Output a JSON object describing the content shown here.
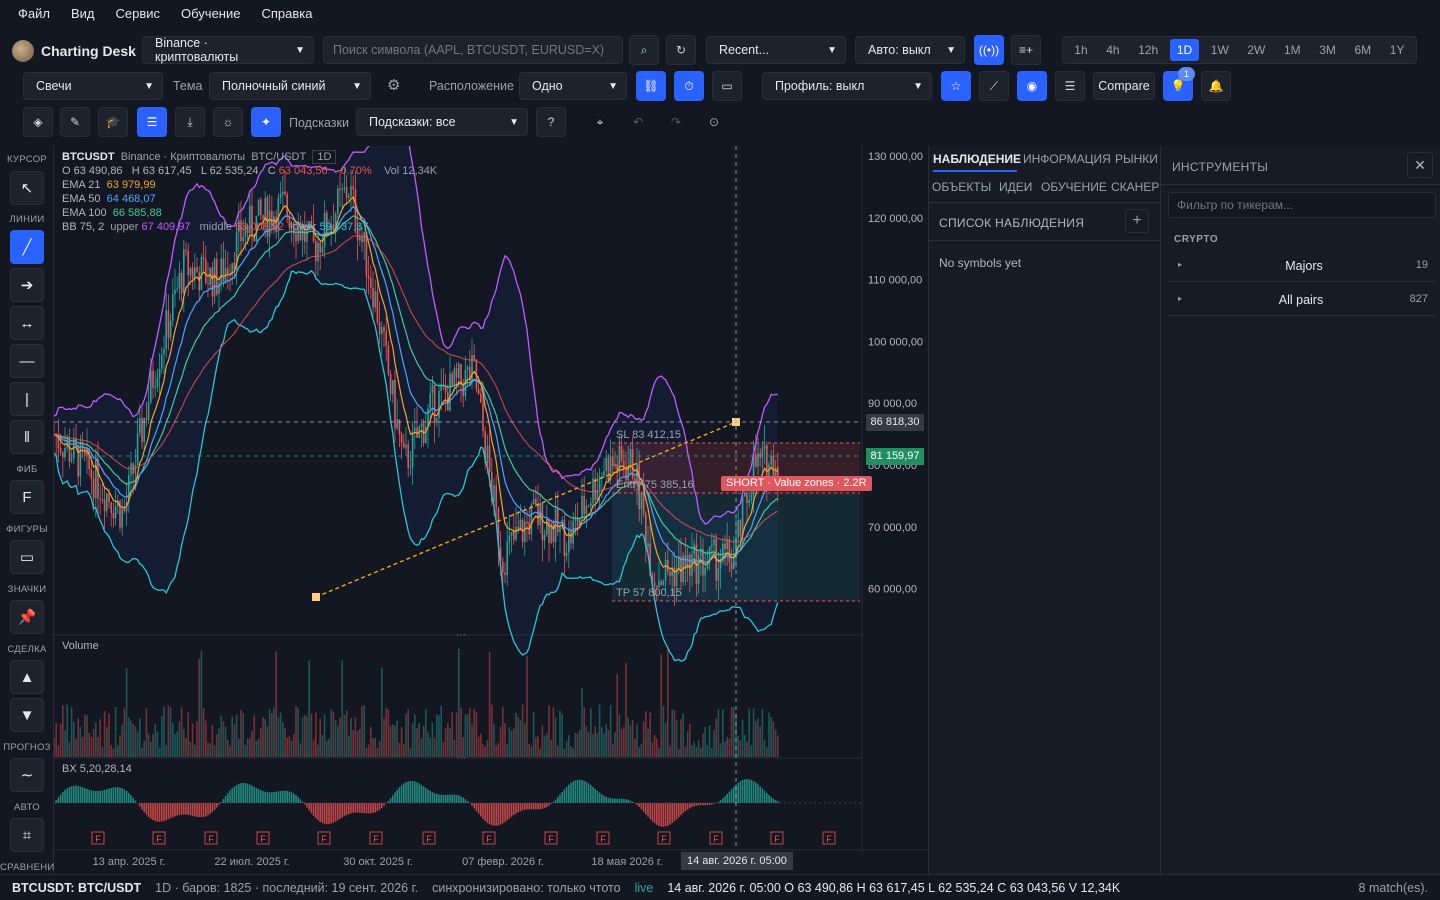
{
  "menu": [
    "Файл",
    "Вид",
    "Сервис",
    "Обучение",
    "Справка"
  ],
  "app": {
    "title": "Charting Desk"
  },
  "row1": {
    "exchange": "Binance · криптовалюты",
    "search_placeholder": "Поиск символа (AAPL, BTCUSDT, EURUSD=X)",
    "recent": "Recent...",
    "auto": "Авто: выкл",
    "timeframes": [
      "1h",
      "4h",
      "12h",
      "1D",
      "1W",
      "2W",
      "1M",
      "3M",
      "6M",
      "1Y"
    ],
    "active_timeframe": "1D"
  },
  "row2": {
    "chart_type": "Свечи",
    "theme_label": "Тема",
    "theme": "Полночный синий",
    "layout_label": "Расположение",
    "layout": "Одно",
    "profile": "Профиль: выкл",
    "compare": "Compare",
    "alerts_badge": "1"
  },
  "row3": {
    "hints_label": "Подсказки",
    "hints": "Подсказки: все"
  },
  "lefttools": {
    "cursor": "КУРСОР",
    "lines": "ЛИНИИ",
    "fib": "ФИБ",
    "shapes": "ФИГУРЫ",
    "marks": "ЗНАЧКИ",
    "trade": "СДЕЛКА",
    "forecast": "ПРОГНОЗ",
    "auto": "АВТО",
    "compare": "СРАВНЕНИЕ"
  },
  "chart": {
    "symbol": "BTCUSDT",
    "exchange": "Binance · Криптовалюты",
    "pair": "BTC/USDT",
    "tf": "1D",
    "ohlc": {
      "o": "O 63 490,86",
      "h": "H 63 617,45",
      "l": "L 62 535,24",
      "c": "C 63 043,56",
      "chg": "-0.70%",
      "vol": "Vol 12,34K"
    },
    "ema21": {
      "label": "EMA 21",
      "value": "63 979,99"
    },
    "ema50": {
      "label": "EMA 50",
      "value": "64 468,07"
    },
    "ema100": {
      "label": "EMA 100",
      "value": "66 585,88"
    },
    "bb": {
      "label": "BB 75, 2",
      "upper_label": "upper",
      "upper": "67 409,97",
      "middle_label": "middle",
      "middle": "63 008,92",
      "lower_label": "lower",
      "lower": "59 737,87"
    },
    "price_ticks": [
      "130 000,00",
      "120 000,00",
      "110 000,00",
      "100 000,00",
      "90 000,00",
      "80 000,00",
      "70 000,00",
      "60 000,00"
    ],
    "crosshair_price": "86 818,30",
    "last_price": "81 159,97",
    "sl": "SL 83 412,15",
    "entry": "Entry 75 385,16",
    "tp": "TP 57 800,15",
    "trade_label": "SHORT · Value zones · 2.2R",
    "volume_label": "Volume",
    "osc_label": "BX 5,20,28,14",
    "date_ticks": [
      "13 апр. 2025 г.",
      "22 июл. 2025 г.",
      "30 окт. 2025 г.",
      "07 февр. 2026 г.",
      "18 мая 2026 г."
    ],
    "crosshair_date": "14 авг. 2026 г. 05:00",
    "event_marker": "F"
  },
  "colors": {
    "accent": "#2962ff",
    "up": "#26a69a",
    "down": "#ef5350",
    "ema21": "#f5a623",
    "ema50": "#4da3ff",
    "ema100": "#3ec9a0",
    "bb": "#c05cff"
  },
  "watch": {
    "tabs": [
      "НАБЛЮДЕНИЕ",
      "ИНФОРМАЦИЯ",
      "РЫНКИ"
    ],
    "tabs2": [
      "ОБЪЕКТЫ",
      "ИДЕИ",
      "ОБУЧЕНИЕ",
      "СКАНЕР"
    ],
    "list_title": "СПИСОК НАБЛЮДЕНИЯ",
    "empty": "No symbols yet"
  },
  "instruments": {
    "title": "ИНСТРУМЕНТЫ",
    "filter_placeholder": "Фильтр по тикерам...",
    "group": "CRYPTO",
    "items": [
      {
        "name": "Majors",
        "count": "19"
      },
      {
        "name": "All pairs",
        "count": "827"
      }
    ]
  },
  "status": {
    "symbol": "BTCUSDT: BTC/USDT",
    "info": "1D · баров: 1825 · последний: 19 сент. 2026 г.",
    "sync": "синхронизировано: только чтото",
    "live": "live",
    "bar": "14 авг. 2026 г. 05:00 O 63 490,86 H 63 617,45 L 62 535,24 C 63 043,56 V 12,34K",
    "matches": "8 match(es)."
  }
}
